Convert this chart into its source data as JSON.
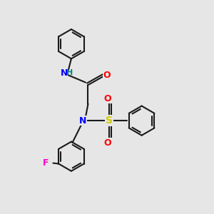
{
  "background_color": "#e6e6e6",
  "bond_color": "#1a1a1a",
  "bond_width": 1.5,
  "atom_colors": {
    "N": "#0000ff",
    "H": "#008080",
    "O": "#ff0000",
    "S": "#cccc00",
    "F": "#ff00cc",
    "C": "#1a1a1a"
  },
  "font_size": 9,
  "fig_width": 3.0,
  "fig_height": 3.0,
  "dpi": 100
}
